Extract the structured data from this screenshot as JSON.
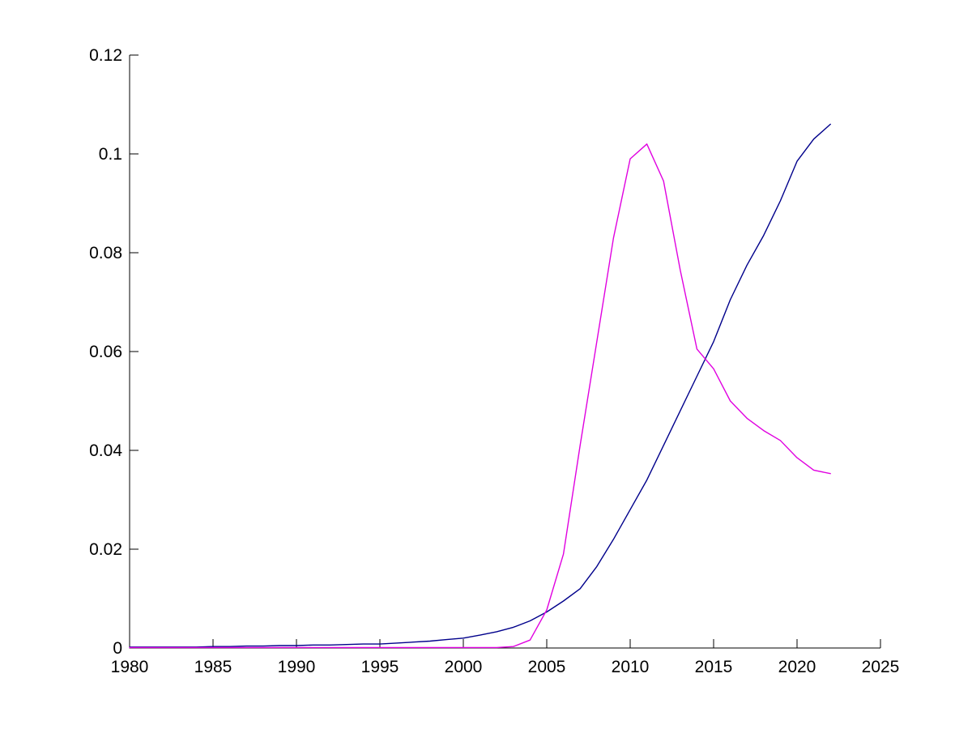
{
  "chart_data": {
    "type": "line",
    "title": "",
    "xlabel": "",
    "ylabel": "",
    "grid": false,
    "box": false,
    "legend": null,
    "background_color": "#ffffff",
    "axis_color": "#000000",
    "xlim": [
      1980,
      2025
    ],
    "ylim": [
      0,
      0.12
    ],
    "xticks": {
      "values": [
        1980,
        1985,
        1990,
        1995,
        2000,
        2005,
        2010,
        2015,
        2020,
        2025
      ],
      "labels": [
        "1980",
        "1985",
        "1990",
        "1995",
        "2000",
        "2005",
        "2010",
        "2015",
        "2020",
        "2025"
      ]
    },
    "yticks": {
      "values": [
        0,
        0.02,
        0.04,
        0.06,
        0.08,
        0.1,
        0.12
      ],
      "labels": [
        "0",
        "0.02",
        "0.04",
        "0.06",
        "0.08",
        "0.1",
        "0.12"
      ]
    },
    "x": [
      1980,
      1981,
      1982,
      1983,
      1984,
      1985,
      1986,
      1987,
      1988,
      1989,
      1990,
      1991,
      1992,
      1993,
      1994,
      1995,
      1996,
      1997,
      1998,
      1999,
      2000,
      2001,
      2002,
      2003,
      2004,
      2005,
      2006,
      2007,
      2008,
      2009,
      2010,
      2011,
      2012,
      2013,
      2014,
      2015,
      2016,
      2017,
      2018,
      2019,
      2020,
      2021,
      2022
    ],
    "series": [
      {
        "name": "navy-line",
        "color": "#00008B",
        "values": [
          0.0002,
          0.0002,
          0.0002,
          0.0002,
          0.0002,
          0.0003,
          0.0003,
          0.0004,
          0.0004,
          0.0005,
          0.0005,
          0.0006,
          0.0006,
          0.0007,
          0.0008,
          0.0008,
          0.001,
          0.0012,
          0.0014,
          0.0017,
          0.002,
          0.0026,
          0.0033,
          0.0042,
          0.0055,
          0.0073,
          0.0095,
          0.012,
          0.0165,
          0.022,
          0.028,
          0.034,
          0.041,
          0.048,
          0.055,
          0.062,
          0.0705,
          0.0775,
          0.0835,
          0.0905,
          0.0985,
          0.103,
          0.106
        ]
      },
      {
        "name": "magenta-line",
        "color": "#E000E0",
        "values": [
          0.0001,
          0.0001,
          0.0001,
          0.0001,
          0.0001,
          0.0001,
          0.0001,
          0.0001,
          0.0001,
          0.0001,
          0.0001,
          0.0001,
          0.0001,
          0.0001,
          0.0001,
          0.0001,
          0.0001,
          0.0001,
          0.0001,
          0.0001,
          0.0001,
          0.0001,
          0.0001,
          0.0003,
          0.0016,
          0.0077,
          0.019,
          0.041,
          0.062,
          0.083,
          0.099,
          0.102,
          0.0945,
          0.0765,
          0.0605,
          0.0565,
          0.05,
          0.0465,
          0.044,
          0.042,
          0.0385,
          0.036,
          0.0353
        ]
      }
    ]
  }
}
